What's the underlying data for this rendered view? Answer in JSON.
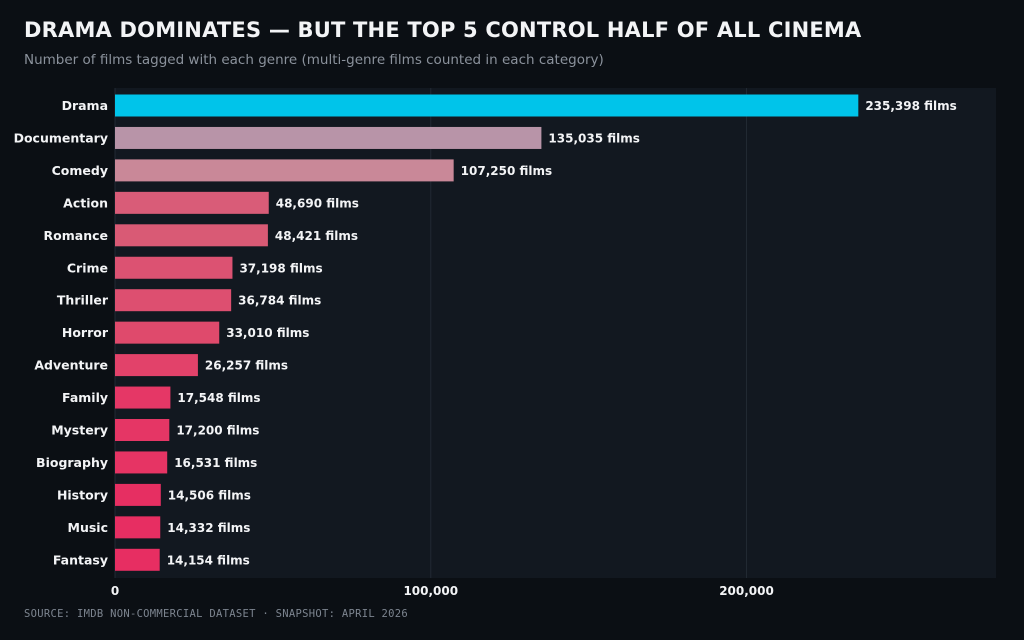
{
  "title": "DRAMA DOMINATES — BUT THE TOP 5 CONTROL HALF OF ALL CINEMA",
  "subtitle": "Number of films tagged with each genre (multi-genre films counted in each category)",
  "source": "SOURCE: IMDB NON-COMMERCIAL DATASET · SNAPSHOT: APRIL 2026",
  "value_suffix": " films",
  "chart_data": {
    "type": "bar",
    "orientation": "horizontal",
    "title": "DRAMA DOMINATES — BUT THE TOP 5 CONTROL HALF OF ALL CINEMA",
    "subtitle": "Number of films tagged with each genre (multi-genre films counted in each category)",
    "xlabel": "",
    "ylabel": "",
    "xlim": [
      0,
      279000
    ],
    "x_ticks": [
      0,
      100000,
      200000
    ],
    "x_tick_labels": [
      "0",
      "100,000",
      "200,000"
    ],
    "grid": true,
    "categories": [
      "Drama",
      "Documentary",
      "Comedy",
      "Action",
      "Romance",
      "Crime",
      "Thriller",
      "Horror",
      "Adventure",
      "Family",
      "Mystery",
      "Biography",
      "History",
      "Music",
      "Fantasy"
    ],
    "values": [
      235398,
      135035,
      107250,
      48690,
      48421,
      37198,
      36784,
      33010,
      26257,
      17548,
      17200,
      16531,
      14506,
      14332,
      14154
    ],
    "data_labels": [
      "235,398 films",
      "135,035 films",
      "107,250 films",
      "48,690 films",
      "48,421 films",
      "37,198 films",
      "36,784 films",
      "33,010 films",
      "26,257 films",
      "17,548 films",
      "17,200 films",
      "16,531 films",
      "14,506 films",
      "14,332 films",
      "14,154 films"
    ],
    "bar_colors": [
      "#00c4ea",
      "#b894a8",
      "#c98898",
      "#d95c78",
      "#d95a75",
      "#dc5272",
      "#dd4f70",
      "#df4a6c",
      "#e2426a",
      "#e53766",
      "#e53665",
      "#e63464",
      "#e62f62",
      "#e72e62",
      "#e72e62"
    ]
  },
  "colors": {
    "background": "#0b0f14",
    "plot_background": "#121820",
    "gridline": "#222a34",
    "text": "#f3f4f6",
    "muted_text": "#8b929c",
    "highlight": "#00c4ea",
    "accent": "#e72e62"
  }
}
